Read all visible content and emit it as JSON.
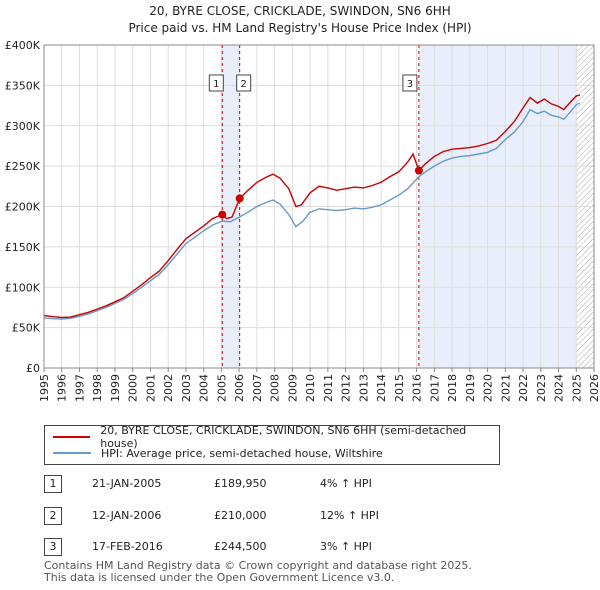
{
  "chart_data": {
    "type": "line",
    "title": "20, BYRE CLOSE, CRICKLADE, SWINDON, SN6 6HH",
    "subtitle": "Price paid vs. HM Land Registry's House Price Index (HPI)",
    "xlim": [
      1995,
      2026
    ],
    "ylim": [
      0,
      400000
    ],
    "x_ticks": [
      "1995",
      "1996",
      "1997",
      "1998",
      "1999",
      "2000",
      "2001",
      "2002",
      "2003",
      "2004",
      "2005",
      "2006",
      "2007",
      "2008",
      "2009",
      "2010",
      "2011",
      "2012",
      "2013",
      "2014",
      "2015",
      "2016",
      "2017",
      "2018",
      "2019",
      "2020",
      "2021",
      "2022",
      "2023",
      "2024",
      "2025",
      "2026"
    ],
    "y_ticks": [
      {
        "value": 0,
        "label": "£0"
      },
      {
        "value": 50000,
        "label": "£50K"
      },
      {
        "value": 100000,
        "label": "£100K"
      },
      {
        "value": 150000,
        "label": "£150K"
      },
      {
        "value": 200000,
        "label": "£200K"
      },
      {
        "value": 250000,
        "label": "£250K"
      },
      {
        "value": 300000,
        "label": "£300K"
      },
      {
        "value": 350000,
        "label": "£350K"
      },
      {
        "value": 400000,
        "label": "£400K"
      }
    ],
    "grid": true,
    "shaded_ranges": [
      {
        "from": 2005.05,
        "to": 2006.03
      },
      {
        "from": 2016.13,
        "to": 2025.0
      }
    ],
    "hatched_from": 2025.0,
    "series": [
      {
        "name": "20, BYRE CLOSE, CRICKLADE, SWINDON, SN6 6HH (semi-detached house)",
        "color": "#cc0000",
        "points": [
          [
            1995,
            65000
          ],
          [
            1995.5,
            63500
          ],
          [
            1996,
            62500
          ],
          [
            1996.5,
            63000
          ],
          [
            1997,
            66000
          ],
          [
            1997.5,
            69000
          ],
          [
            1998,
            73000
          ],
          [
            1998.5,
            77000
          ],
          [
            1999,
            82000
          ],
          [
            1999.5,
            87000
          ],
          [
            2000,
            95000
          ],
          [
            2000.5,
            103000
          ],
          [
            2001,
            112000
          ],
          [
            2001.5,
            120000
          ],
          [
            2002,
            133000
          ],
          [
            2002.5,
            147000
          ],
          [
            2003,
            160000
          ],
          [
            2003.5,
            168000
          ],
          [
            2004,
            176000
          ],
          [
            2004.5,
            185000
          ],
          [
            2005.05,
            190000
          ],
          [
            2005.3,
            185000
          ],
          [
            2005.6,
            187000
          ],
          [
            2006.03,
            210000
          ],
          [
            2006.5,
            220000
          ],
          [
            2007,
            230000
          ],
          [
            2007.5,
            236000
          ],
          [
            2007.9,
            240000
          ],
          [
            2008.3,
            235000
          ],
          [
            2008.8,
            222000
          ],
          [
            2009.2,
            200000
          ],
          [
            2009.5,
            202000
          ],
          [
            2010,
            217000
          ],
          [
            2010.5,
            225000
          ],
          [
            2011,
            223000
          ],
          [
            2011.5,
            220000
          ],
          [
            2012,
            222000
          ],
          [
            2012.5,
            224000
          ],
          [
            2013,
            223000
          ],
          [
            2013.5,
            226000
          ],
          [
            2014,
            230000
          ],
          [
            2014.5,
            237000
          ],
          [
            2015,
            243000
          ],
          [
            2015.5,
            255000
          ],
          [
            2015.8,
            265000
          ],
          [
            2016.13,
            244500
          ],
          [
            2016.5,
            253000
          ],
          [
            2017,
            262000
          ],
          [
            2017.5,
            268000
          ],
          [
            2018,
            271000
          ],
          [
            2018.5,
            272000
          ],
          [
            2019,
            273000
          ],
          [
            2019.5,
            275000
          ],
          [
            2020,
            278000
          ],
          [
            2020.5,
            282000
          ],
          [
            2021,
            293000
          ],
          [
            2021.5,
            305000
          ],
          [
            2022,
            322000
          ],
          [
            2022.4,
            335000
          ],
          [
            2022.8,
            328000
          ],
          [
            2023.2,
            333000
          ],
          [
            2023.6,
            327000
          ],
          [
            2024,
            324000
          ],
          [
            2024.3,
            320000
          ],
          [
            2024.7,
            330000
          ],
          [
            2025,
            337000
          ],
          [
            2025.2,
            338000
          ]
        ]
      },
      {
        "name": "HPI: Average price, semi-detached house, Wiltshire",
        "color": "#6699cc",
        "points": [
          [
            1995,
            62000
          ],
          [
            1995.5,
            61000
          ],
          [
            1996,
            60500
          ],
          [
            1996.5,
            61500
          ],
          [
            1997,
            64000
          ],
          [
            1997.5,
            67000
          ],
          [
            1998,
            71000
          ],
          [
            1998.5,
            75000
          ],
          [
            1999,
            80000
          ],
          [
            1999.5,
            85000
          ],
          [
            2000,
            92000
          ],
          [
            2000.5,
            100000
          ],
          [
            2001,
            108000
          ],
          [
            2001.5,
            116000
          ],
          [
            2002,
            128000
          ],
          [
            2002.5,
            141000
          ],
          [
            2003,
            154000
          ],
          [
            2003.5,
            162000
          ],
          [
            2004,
            170000
          ],
          [
            2004.5,
            177000
          ],
          [
            2005.05,
            182000
          ],
          [
            2005.5,
            181000
          ],
          [
            2006.03,
            187000
          ],
          [
            2006.5,
            193000
          ],
          [
            2007,
            200000
          ],
          [
            2007.5,
            205000
          ],
          [
            2007.9,
            208000
          ],
          [
            2008.3,
            203000
          ],
          [
            2008.8,
            190000
          ],
          [
            2009.2,
            175000
          ],
          [
            2009.6,
            182000
          ],
          [
            2010,
            193000
          ],
          [
            2010.5,
            197000
          ],
          [
            2011,
            196000
          ],
          [
            2011.5,
            195000
          ],
          [
            2012,
            196000
          ],
          [
            2012.5,
            198000
          ],
          [
            2013,
            197000
          ],
          [
            2013.5,
            199000
          ],
          [
            2014,
            202000
          ],
          [
            2014.5,
            208000
          ],
          [
            2015,
            214000
          ],
          [
            2015.5,
            222000
          ],
          [
            2016.13,
            237000
          ],
          [
            2016.5,
            243000
          ],
          [
            2017,
            250000
          ],
          [
            2017.5,
            256000
          ],
          [
            2018,
            260000
          ],
          [
            2018.5,
            262000
          ],
          [
            2019,
            263000
          ],
          [
            2019.5,
            265000
          ],
          [
            2020,
            267000
          ],
          [
            2020.5,
            272000
          ],
          [
            2021,
            283000
          ],
          [
            2021.5,
            292000
          ],
          [
            2022,
            305000
          ],
          [
            2022.4,
            320000
          ],
          [
            2022.8,
            315000
          ],
          [
            2023.2,
            318000
          ],
          [
            2023.6,
            313000
          ],
          [
            2024,
            311000
          ],
          [
            2024.3,
            308000
          ],
          [
            2024.7,
            318000
          ],
          [
            2025,
            326000
          ],
          [
            2025.2,
            328000
          ]
        ]
      }
    ],
    "markers": [
      {
        "label": "1",
        "x": 2005.05,
        "value": 189950
      },
      {
        "label": "2",
        "x": 2006.03,
        "value": 210000
      },
      {
        "label": "3",
        "x": 2016.13,
        "value": 244500
      }
    ]
  },
  "legend": {
    "property_label": "20, BYRE CLOSE, CRICKLADE, SWINDON, SN6 6HH (semi-detached house)",
    "hpi_label": "HPI: Average price, semi-detached house, Wiltshire",
    "property_color": "#cc0000",
    "hpi_color": "#6699cc"
  },
  "transactions": [
    {
      "num": "1",
      "date": "21-JAN-2005",
      "price": "£189,950",
      "hpi": "4% ↑ HPI"
    },
    {
      "num": "2",
      "date": "12-JAN-2006",
      "price": "£210,000",
      "hpi": "12% ↑ HPI"
    },
    {
      "num": "3",
      "date": "17-FEB-2016",
      "price": "£244,500",
      "hpi": "3% ↑ HPI"
    }
  ],
  "footer": {
    "line1": "Contains HM Land Registry data © Crown copyright and database right 2025.",
    "line2": "This data is licensed under the Open Government Licence v3.0."
  }
}
